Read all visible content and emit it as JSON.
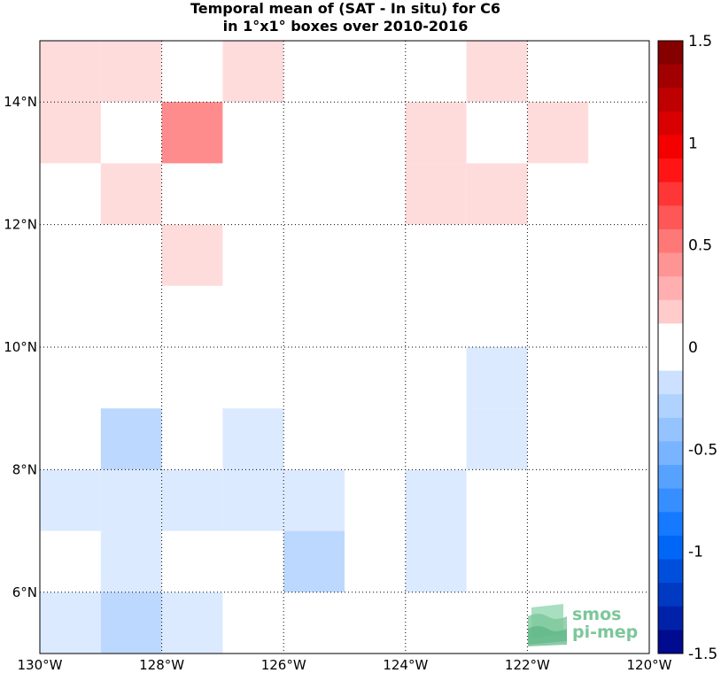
{
  "chart_data": {
    "type": "heatmap",
    "title_lines": [
      "Temporal mean of (SAT - In situ) for C6",
      "in 1°x1° boxes over 2010-2016"
    ],
    "x_ticks": [
      "130°W",
      "128°W",
      "126°W",
      "124°W",
      "122°W",
      "120°W"
    ],
    "y_ticks": [
      "6°N",
      "8°N",
      "10°N",
      "12°N",
      "14°N"
    ],
    "xlim": [
      -130,
      -120
    ],
    "ylim": [
      5,
      15
    ],
    "grid": true,
    "colorbar": {
      "ticks": [
        "1.5",
        "1",
        "0.5",
        "0",
        "-0.5",
        "-1",
        "-1.5"
      ],
      "range": [
        -1.5,
        1.5
      ],
      "levels": 26
    },
    "cells": [
      {
        "lon": -130,
        "lat": 14,
        "value": 0.15
      },
      {
        "lon": -129,
        "lat": 14,
        "value": 0.15
      },
      {
        "lon": -127,
        "lat": 14,
        "value": 0.15
      },
      {
        "lon": -123,
        "lat": 14,
        "value": 0.15
      },
      {
        "lon": -130,
        "lat": 13,
        "value": 0.15
      },
      {
        "lon": -128,
        "lat": 13,
        "value": 0.4
      },
      {
        "lon": -124,
        "lat": 13,
        "value": 0.15
      },
      {
        "lon": -122,
        "lat": 13,
        "value": 0.15
      },
      {
        "lon": -129,
        "lat": 12,
        "value": 0.15
      },
      {
        "lon": -124,
        "lat": 12,
        "value": 0.15
      },
      {
        "lon": -123,
        "lat": 12,
        "value": 0.15
      },
      {
        "lon": -128,
        "lat": 11,
        "value": 0.15
      },
      {
        "lon": -123,
        "lat": 9,
        "value": -0.1
      },
      {
        "lon": -123,
        "lat": 8,
        "value": -0.1
      },
      {
        "lon": -129,
        "lat": 8,
        "value": -0.25
      },
      {
        "lon": -127,
        "lat": 8,
        "value": -0.1
      },
      {
        "lon": -130,
        "lat": 7,
        "value": -0.1
      },
      {
        "lon": -129,
        "lat": 7,
        "value": -0.1
      },
      {
        "lon": -128,
        "lat": 7,
        "value": -0.1
      },
      {
        "lon": -127,
        "lat": 7,
        "value": -0.1
      },
      {
        "lon": -126,
        "lat": 7,
        "value": -0.1
      },
      {
        "lon": -124,
        "lat": 7,
        "value": -0.1
      },
      {
        "lon": -129,
        "lat": 6,
        "value": -0.1
      },
      {
        "lon": -126,
        "lat": 6,
        "value": -0.25
      },
      {
        "lon": -124,
        "lat": 6,
        "value": -0.1
      },
      {
        "lon": -130,
        "lat": 5,
        "value": -0.1
      },
      {
        "lon": -129,
        "lat": 5,
        "value": -0.25
      },
      {
        "lon": -128,
        "lat": 5,
        "value": -0.1
      }
    ]
  },
  "watermark": {
    "line1": "smos",
    "line2": "pi-mep"
  },
  "colors": {
    "pos_light": "#ffdcdc",
    "pos_medium": "#ff8c8c",
    "neg_light": "#dceaff",
    "neg_medium": "#bcd8ff",
    "grid": "#000000",
    "watermark": "#7cc79a"
  }
}
